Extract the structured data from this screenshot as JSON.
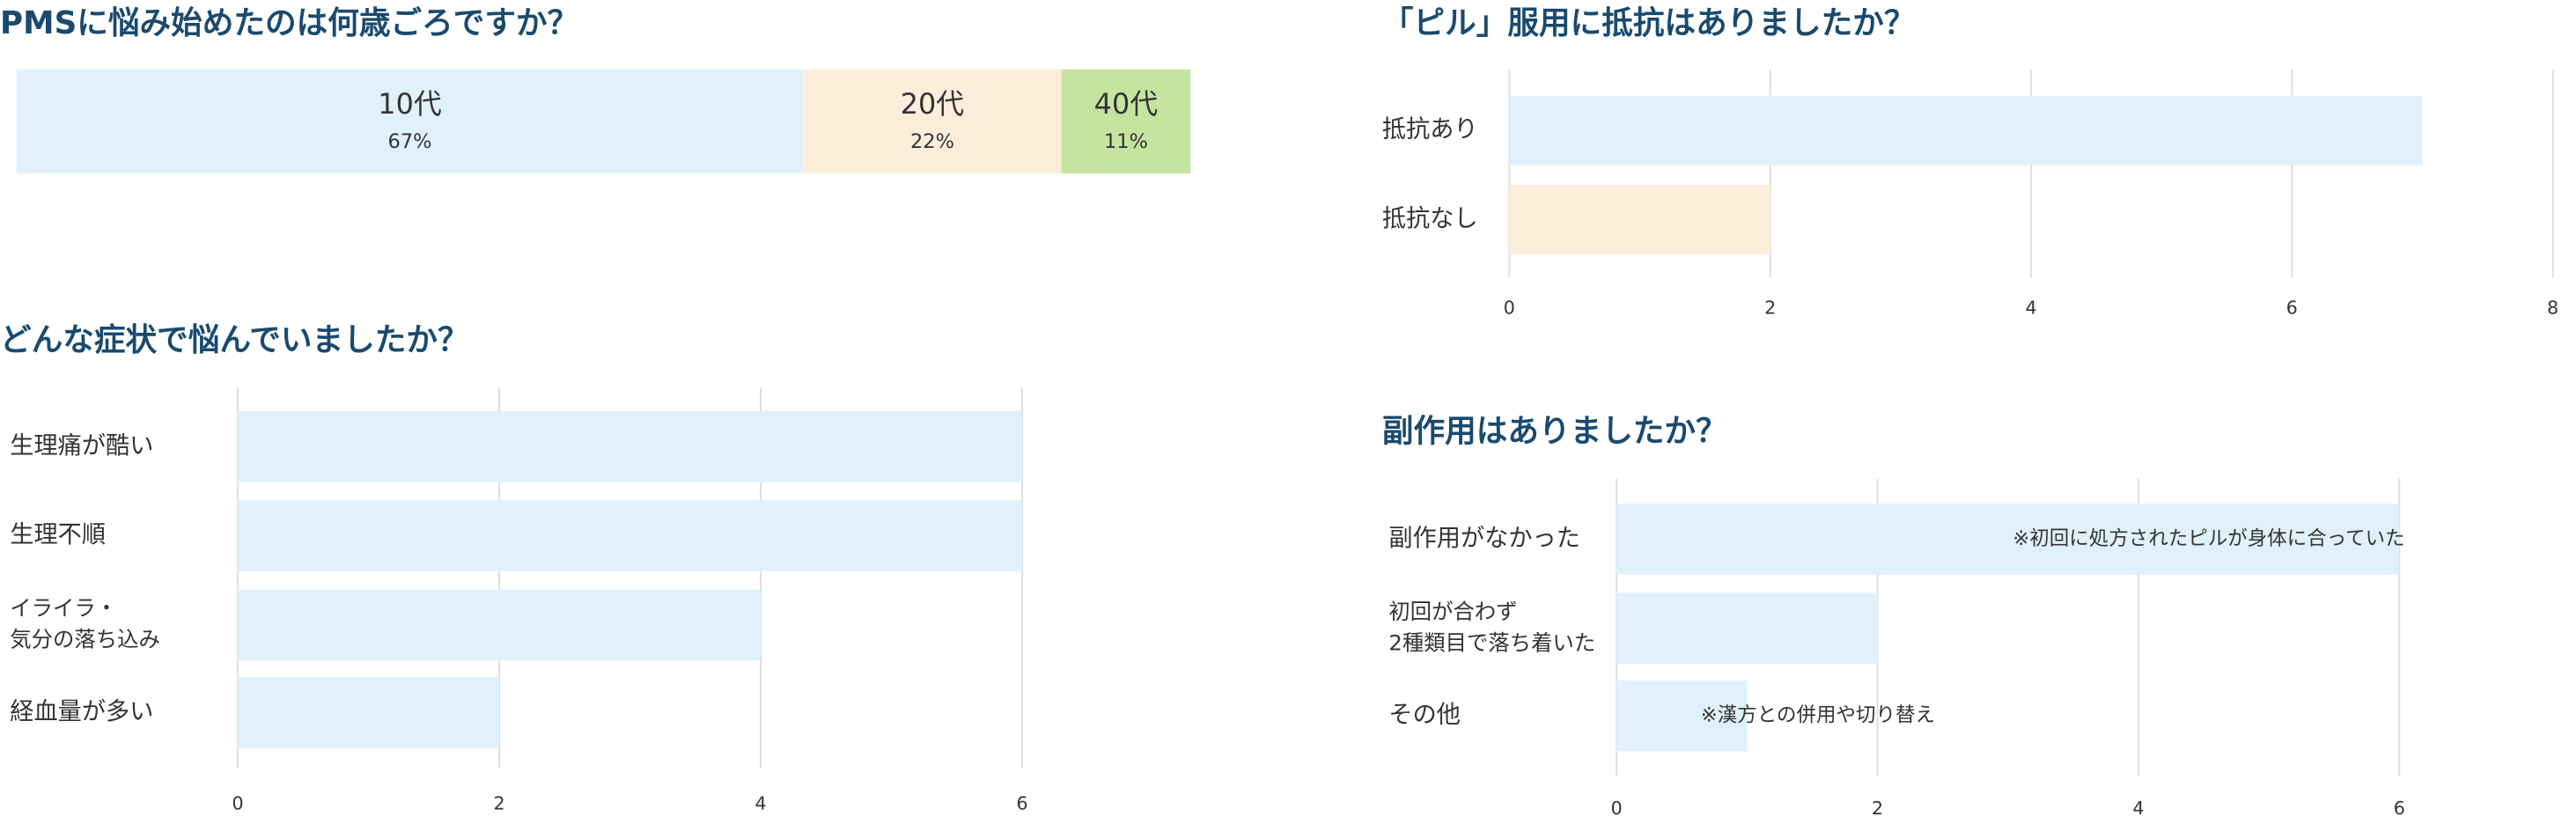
{
  "chart_data": [
    {
      "type": "stacked_bar",
      "title": "PMSに悩み始めたのは何歳ごろですか？",
      "xlim": [
        0,
        100
      ],
      "series": [
        {
          "name": "10代",
          "color": "#e0f1fb",
          "values": [
            67
          ],
          "value_labels": [
            "67%"
          ]
        },
        {
          "name": "20代",
          "color": "#fdeedc",
          "values": [
            22
          ],
          "value_labels": [
            "22%"
          ]
        },
        {
          "name": "40代",
          "color": "#c5e4a0",
          "values": [
            11
          ],
          "value_labels": [
            "11%"
          ]
        }
      ]
    },
    {
      "type": "hbar",
      "title": "「ピル」服用に抵抗はありましたか？",
      "categories": [
        "抵抗あり",
        "抵抗なし"
      ],
      "values": [
        7,
        2
      ],
      "colors": [
        "#e0f1fb",
        "#fdeedc"
      ],
      "xlim": [
        0,
        8
      ],
      "xticks": [
        0,
        2,
        4,
        6,
        8
      ],
      "grid": true
    },
    {
      "type": "hbar",
      "title": "どんな症状で悩んでいましたか？",
      "categories": [
        "生理痛が酷い",
        "生理不順",
        "イライラ・\n気分の落ち込み",
        "経血量が多い"
      ],
      "values": [
        6,
        6,
        4,
        2
      ],
      "colors": [
        "#e0f1fb",
        "#e0f1fb",
        "#e0f1fb",
        "#e0f1fb"
      ],
      "xlim": [
        0,
        6
      ],
      "xticks": [
        0,
        2,
        4,
        6
      ],
      "grid": true
    },
    {
      "type": "hbar",
      "title": "副作用はありましたか？",
      "categories": [
        "副作用がなかった",
        "初回が合わず\n2種類目で落ち着いた",
        "その他"
      ],
      "values": [
        6,
        2,
        1
      ],
      "colors": [
        "#e0f1fb",
        "#e0f1fb",
        "#e0f1fb"
      ],
      "xlim": [
        0,
        6
      ],
      "xticks": [
        0,
        2,
        4,
        6
      ],
      "grid": true,
      "notes": [
        "※初回に処方されたピルが身体に合っていた",
        null,
        "※漢方との併用や切り替え"
      ]
    }
  ]
}
